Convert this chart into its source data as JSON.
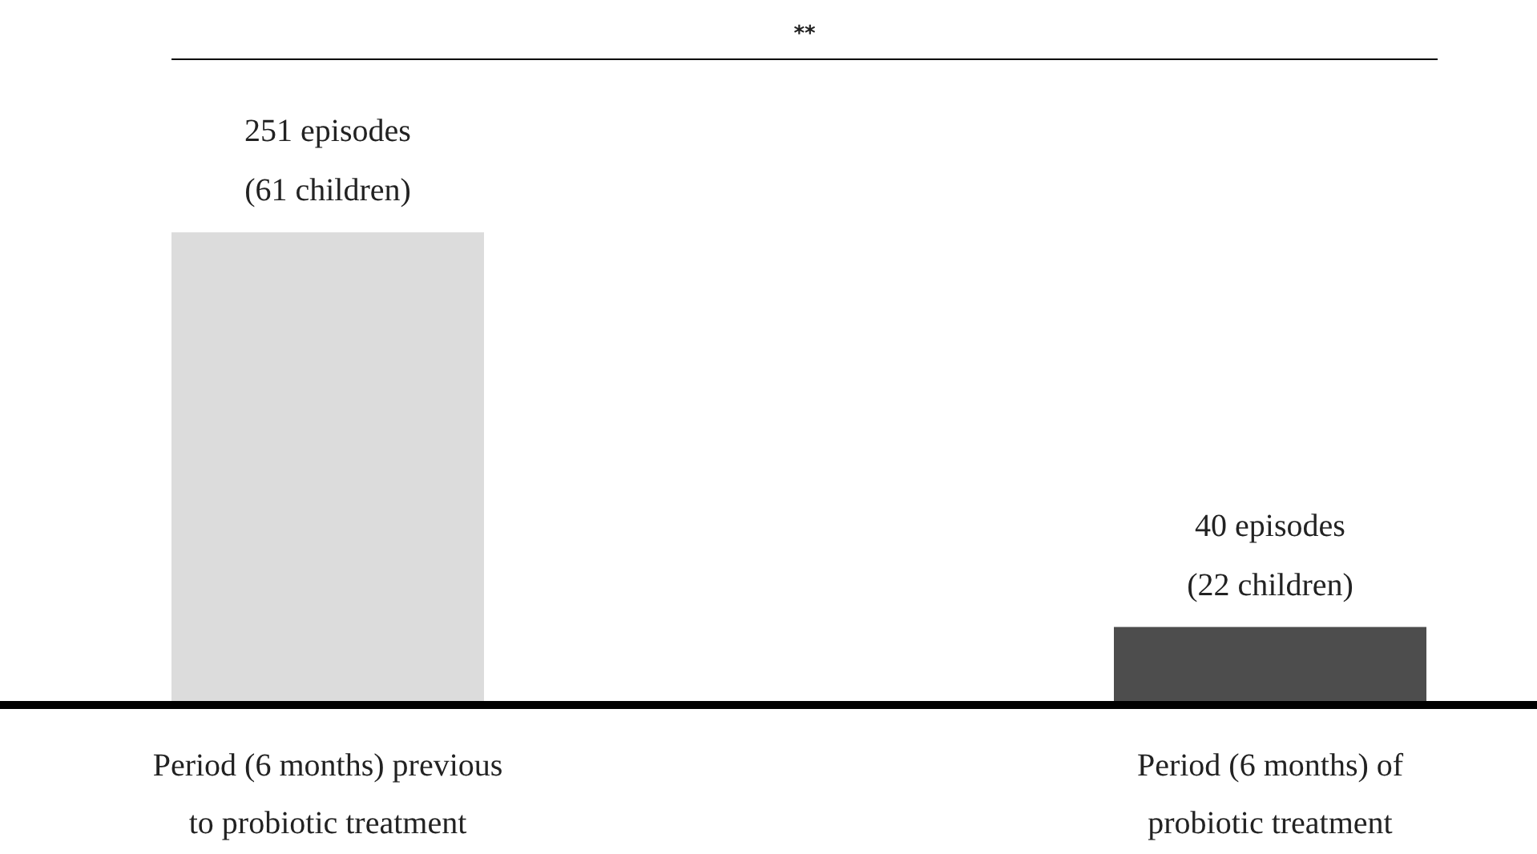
{
  "chart_data": {
    "type": "bar",
    "categories": [
      "Period (6 months) previous to probiotic treatment",
      "Period (6 months) of probiotic treatment"
    ],
    "values": [
      251,
      40
    ],
    "colors": [
      "#dcdcdc",
      "#4d4d4d"
    ],
    "value_labels": [
      "251 episodes (61 children)",
      "40 episodes (22 children)"
    ],
    "annotations": [
      "**"
    ]
  }
}
